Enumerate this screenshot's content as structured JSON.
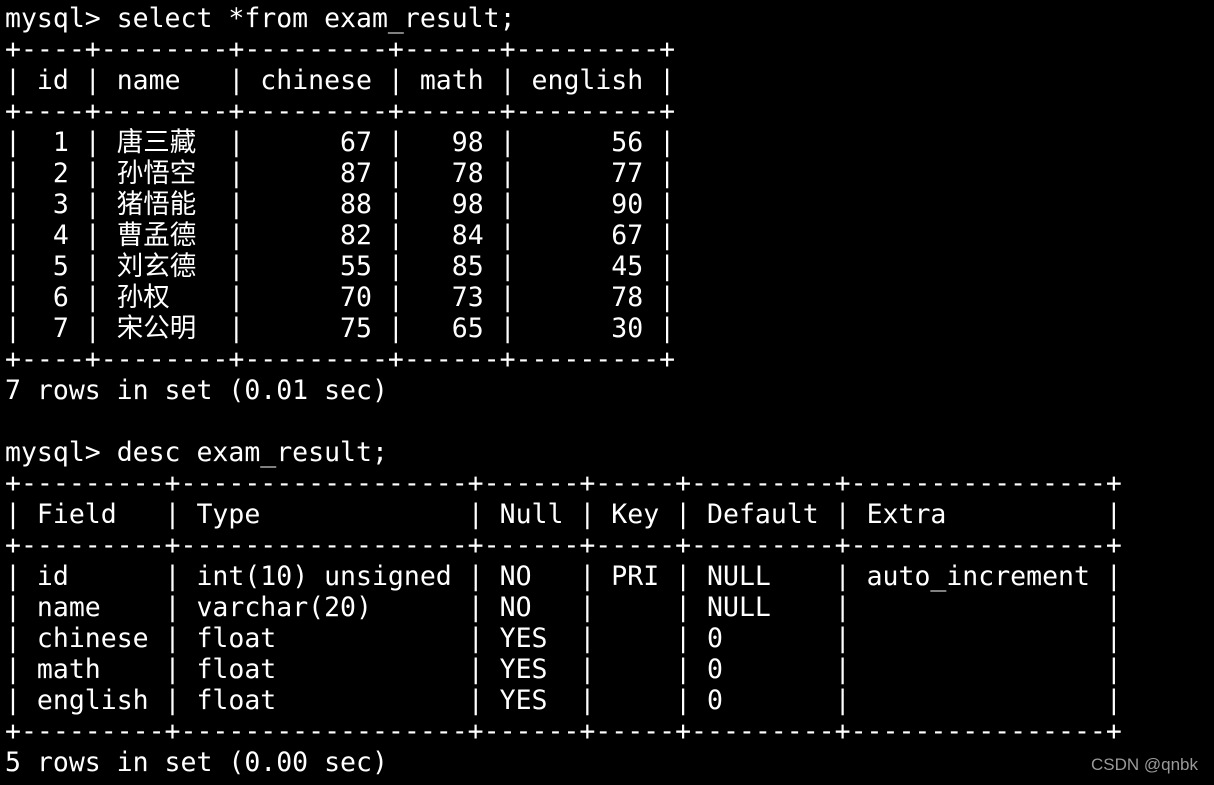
{
  "terminal": {
    "prompt": "mysql> ",
    "queries": [
      {
        "command": "select *from exam_result;",
        "columns": [
          "id",
          "name",
          "chinese",
          "math",
          "english"
        ],
        "rows": [
          [
            "1",
            "唐三藏",
            "67",
            "98",
            "56"
          ],
          [
            "2",
            "孙悟空",
            "87",
            "78",
            "77"
          ],
          [
            "3",
            "猪悟能",
            "88",
            "98",
            "90"
          ],
          [
            "4",
            "曹孟德",
            "82",
            "84",
            "67"
          ],
          [
            "5",
            "刘玄德",
            "55",
            "85",
            "45"
          ],
          [
            "6",
            "孙权",
            "70",
            "73",
            "78"
          ],
          [
            "7",
            "宋公明",
            "75",
            "65",
            "30"
          ]
        ],
        "summary": "7 rows in set (0.01 sec)"
      },
      {
        "command": "desc exam_result;",
        "columns": [
          "Field",
          "Type",
          "Null",
          "Key",
          "Default",
          "Extra"
        ],
        "rows": [
          [
            "id",
            "int(10) unsigned",
            "NO",
            "PRI",
            "NULL",
            "auto_increment"
          ],
          [
            "name",
            "varchar(20)",
            "NO",
            "",
            "NULL",
            ""
          ],
          [
            "chinese",
            "float",
            "YES",
            "",
            "0",
            ""
          ],
          [
            "math",
            "float",
            "YES",
            "",
            "0",
            ""
          ],
          [
            "english",
            "float",
            "YES",
            "",
            "0",
            ""
          ]
        ],
        "summary": "5 rows in set (0.00 sec)"
      }
    ]
  },
  "watermark": "CSDN @qnbk"
}
